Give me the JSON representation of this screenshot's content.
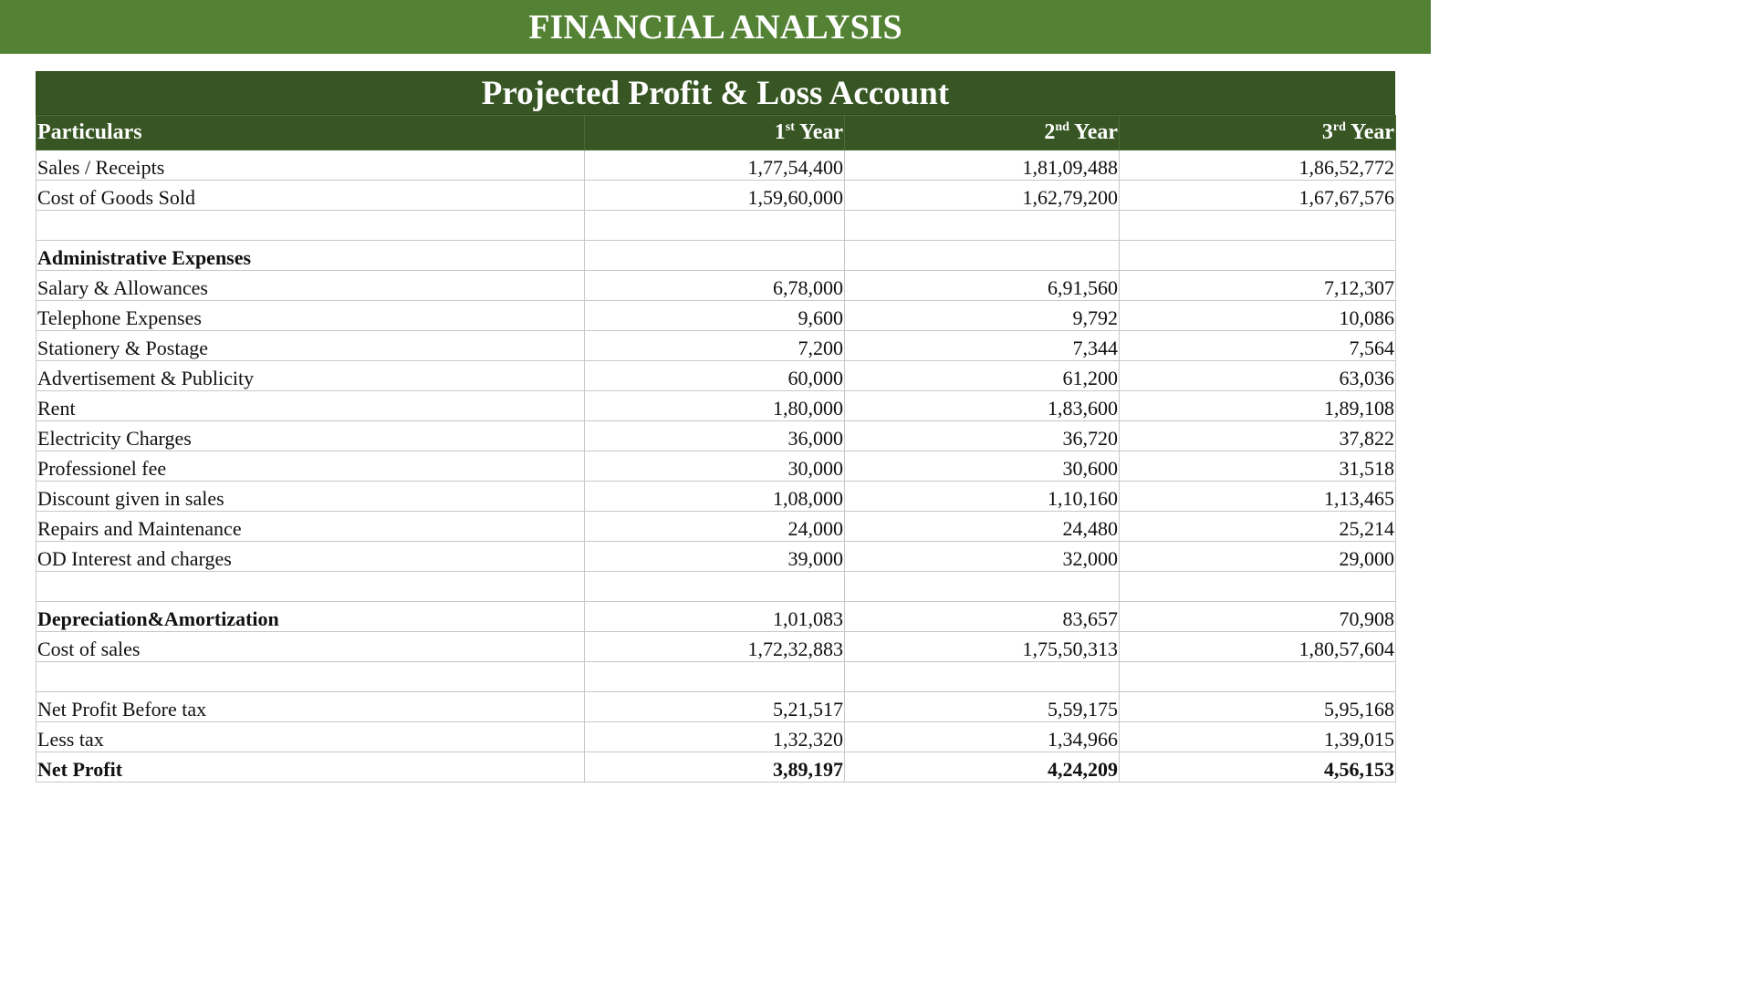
{
  "banner": {
    "title": "FINANCIAL ANALYSIS"
  },
  "table": {
    "title": "Projected Profit & Loss Account",
    "headers": {
      "particulars": "Particulars",
      "y1_num": "1",
      "y1_sup": "st",
      "y1_word": "Year",
      "y2_num": "2",
      "y2_sup": "nd",
      "y2_word": "Year",
      "y3_num": "3",
      "y3_sup": "rd",
      "y3_word": "Year"
    },
    "rows": [
      {
        "label": "Sales / Receipts",
        "y1": "1,77,54,400",
        "y2": "1,81,09,488",
        "y3": "1,86,52,772"
      },
      {
        "label": "Cost of Goods Sold",
        "y1": "1,59,60,000",
        "y2": "1,62,79,200",
        "y3": "1,67,67,576"
      },
      {
        "label": "",
        "y1": "",
        "y2": "",
        "y3": ""
      },
      {
        "label": "Administrative Expenses",
        "y1": "",
        "y2": "",
        "y3": ""
      },
      {
        "label": "Salary & Allowances",
        "y1": "6,78,000",
        "y2": "6,91,560",
        "y3": "7,12,307"
      },
      {
        "label": "Telephone Expenses",
        "y1": "9,600",
        "y2": "9,792",
        "y3": "10,086"
      },
      {
        "label": "Stationery & Postage",
        "y1": "7,200",
        "y2": "7,344",
        "y3": "7,564"
      },
      {
        "label": "Advertisement & Publicity",
        "y1": "60,000",
        "y2": "61,200",
        "y3": "63,036"
      },
      {
        "label": "Rent",
        "y1": "1,80,000",
        "y2": "1,83,600",
        "y3": "1,89,108"
      },
      {
        "label": "Electricity Charges",
        "y1": "36,000",
        "y2": "36,720",
        "y3": "37,822"
      },
      {
        "label": "Professionel fee",
        "y1": "30,000",
        "y2": "30,600",
        "y3": "31,518"
      },
      {
        "label": "Discount given in sales",
        "y1": "1,08,000",
        "y2": "1,10,160",
        "y3": "1,13,465"
      },
      {
        "label": "Repairs and Maintenance",
        "y1": "24,000",
        "y2": "24,480",
        "y3": "25,214"
      },
      {
        "label": "OD Interest and charges",
        "y1": "39,000",
        "y2": "32,000",
        "y3": "29,000"
      },
      {
        "label": "",
        "y1": "",
        "y2": "",
        "y3": ""
      },
      {
        "label": "Depreciation&Amortization",
        "y1": "1,01,083",
        "y2": "83,657",
        "y3": "70,908"
      },
      {
        "label": "Cost of sales",
        "y1": "1,72,32,883",
        "y2": "1,75,50,313",
        "y3": "1,80,57,604"
      },
      {
        "label": "",
        "y1": "",
        "y2": "",
        "y3": ""
      },
      {
        "label": "Net Profit Before tax",
        "y1": "5,21,517",
        "y2": "5,59,175",
        "y3": "5,95,168"
      },
      {
        "label": "Less tax",
        "y1": "1,32,320",
        "y2": "1,34,966",
        "y3": "1,39,015"
      },
      {
        "label": "Net Profit",
        "y1": "3,89,197",
        "y2": "4,24,209",
        "y3": "4,56,153"
      }
    ]
  },
  "colors": {
    "banner": "#548235",
    "header": "#375623",
    "grid": "#c8c8c8"
  }
}
